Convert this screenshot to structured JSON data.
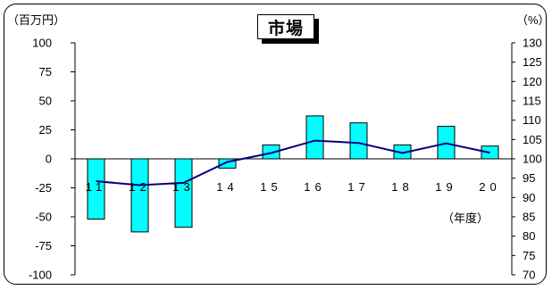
{
  "chart_data": {
    "type": "bar",
    "title": "市場",
    "left_unit": "（百万円）",
    "right_unit": "（%）",
    "x_unit": "（年度）",
    "categories": [
      "11",
      "12",
      "13",
      "14",
      "15",
      "16",
      "17",
      "18",
      "19",
      "20"
    ],
    "left_axis": {
      "min": -100,
      "max": 100,
      "step": 25,
      "ticks": [
        "100",
        "75",
        "50",
        "25",
        "0",
        "-25",
        "-50",
        "-75",
        "-100"
      ]
    },
    "right_axis": {
      "min": 70,
      "max": 130,
      "step": 5,
      "ticks": [
        "130",
        "125",
        "120",
        "115",
        "110",
        "105",
        "100",
        "95",
        "90",
        "85",
        "80",
        "75",
        "70"
      ]
    },
    "series": [
      {
        "type": "bar",
        "axis": "left",
        "color": "#00ffff",
        "values": [
          -52,
          -63,
          -59,
          -8,
          12,
          37,
          31,
          12,
          28,
          11
        ]
      },
      {
        "type": "line",
        "axis": "right",
        "color": "#000080",
        "values": [
          94.2,
          93.2,
          93.8,
          99.2,
          101.5,
          104.7,
          104.1,
          101.5,
          104.0,
          101.6
        ]
      }
    ],
    "grid": false
  }
}
